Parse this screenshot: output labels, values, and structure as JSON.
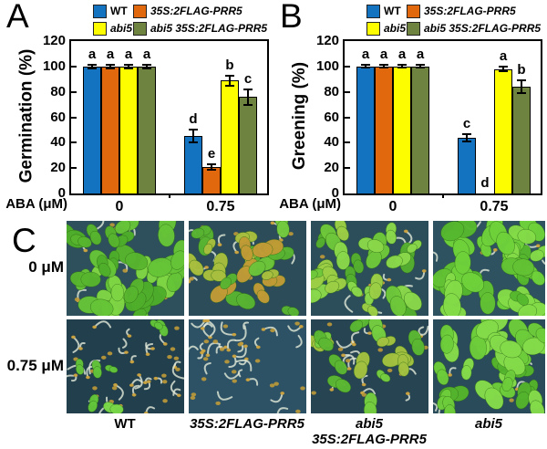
{
  "figure": {
    "panel_a_letter": "A",
    "panel_b_letter": "B",
    "panel_c_letter": "C"
  },
  "legend": {
    "items": [
      {
        "label": "WT",
        "color": "#1373c0",
        "italic": false
      },
      {
        "label": "35S:2FLAG-PRR5",
        "color": "#e2680e",
        "italic": true
      },
      {
        "label": "abi5",
        "color": "#fdfd00",
        "italic": true
      },
      {
        "label": "abi5 35S:2FLAG-PRR5",
        "color": "#6e8340",
        "italic": true
      }
    ]
  },
  "chart_data": [
    {
      "id": "A",
      "type": "bar",
      "title": "",
      "ylabel": "Germination (%)",
      "xlabel": "ABA (μM)",
      "ylim": [
        0,
        120
      ],
      "yticks": [
        0,
        20,
        40,
        60,
        80,
        100,
        120
      ],
      "categories": [
        "0",
        "0.75"
      ],
      "legend_position": "top",
      "grid": false,
      "series": [
        {
          "name": "WT",
          "color": "#1373c0",
          "values": [
            100,
            45
          ],
          "errors": [
            1.5,
            5
          ],
          "letters": [
            "a",
            "d"
          ]
        },
        {
          "name": "35S:2FLAG-PRR5",
          "color": "#e2680e",
          "values": [
            100,
            21
          ],
          "errors": [
            1.5,
            2
          ],
          "letters": [
            "a",
            "e"
          ]
        },
        {
          "name": "abi5",
          "color": "#fdfd00",
          "values": [
            100,
            89
          ],
          "errors": [
            1.5,
            4
          ],
          "letters": [
            "a",
            "b"
          ]
        },
        {
          "name": "abi5 35S:2FLAG-PRR5",
          "color": "#6e8340",
          "values": [
            100,
            76
          ],
          "errors": [
            1.5,
            6
          ],
          "letters": [
            "a",
            "c"
          ]
        }
      ]
    },
    {
      "id": "B",
      "type": "bar",
      "title": "",
      "ylabel": "Greening (%)",
      "xlabel": "ABA (μM)",
      "ylim": [
        0,
        120
      ],
      "yticks": [
        0,
        20,
        40,
        60,
        80,
        100,
        120
      ],
      "categories": [
        "0",
        "0.75"
      ],
      "legend_position": "top",
      "grid": false,
      "series": [
        {
          "name": "WT",
          "color": "#1373c0",
          "values": [
            100,
            44
          ],
          "errors": [
            1,
            3
          ],
          "letters": [
            "a",
            "c"
          ]
        },
        {
          "name": "35S:2FLAG-PRR5",
          "color": "#e2680e",
          "values": [
            100,
            0
          ],
          "errors": [
            1,
            0
          ],
          "letters": [
            "a",
            "d"
          ]
        },
        {
          "name": "abi5",
          "color": "#fdfd00",
          "values": [
            100,
            98
          ],
          "errors": [
            1,
            2
          ],
          "letters": [
            "a",
            "a"
          ]
        },
        {
          "name": "abi5 35S:2FLAG-PRR5",
          "color": "#6e8340",
          "values": [
            100,
            84
          ],
          "errors": [
            1,
            5
          ],
          "letters": [
            "a",
            "b"
          ]
        }
      ]
    }
  ],
  "panel_c": {
    "row_labels": [
      "0 μM",
      "0.75 μM"
    ],
    "col_labels": [
      {
        "lines": [
          "WT"
        ],
        "italic": false
      },
      {
        "lines": [
          "35S:2FLAG-PRR5"
        ],
        "italic": true
      },
      {
        "lines": [
          "abi5",
          "35S:2FLAG-PRR5"
        ],
        "italic": true
      },
      {
        "lines": [
          "abi5"
        ],
        "italic": true
      }
    ],
    "photos": [
      {
        "id": "wt-0um",
        "genotype": "WT",
        "treatment": "0 μM",
        "desc": "dense large green cotyledons",
        "params": {
          "bg": "#2d505c",
          "green": 30,
          "size": 12,
          "pale": 8,
          "seeds": 5,
          "palette": [
            "#4fae2a",
            "#66c437",
            "#7fd644",
            "#58b52e"
          ],
          "seed": 11
        }
      },
      {
        "id": "prr5-0um",
        "genotype": "35S:2FLAG-PRR5",
        "treatment": "0 μM",
        "desc": "green cotyledons with yellowish-brown patches",
        "params": {
          "bg": "#2b4c58",
          "green": 24,
          "size": 10,
          "pale": 12,
          "seeds": 8,
          "palette": [
            "#58b431",
            "#74cb3e",
            "#a8bf3e",
            "#c19b35",
            "#6cc43a"
          ],
          "seed": 22
        }
      },
      {
        "id": "abi5-prr5-0um",
        "genotype": "abi5 35S:2FLAG-PRR5",
        "treatment": "0 μM",
        "desc": "green cotyledons",
        "params": {
          "bg": "#2c4e5a",
          "green": 26,
          "size": 10,
          "pale": 10,
          "seeds": 7,
          "palette": [
            "#55b02e",
            "#6fc83a",
            "#8ad84a",
            "#9ccf45"
          ],
          "seed": 33
        }
      },
      {
        "id": "abi5-0um",
        "genotype": "abi5",
        "treatment": "0 μM",
        "desc": "dense bright green cotyledons",
        "params": {
          "bg": "#2e5260",
          "green": 34,
          "size": 12,
          "pale": 6,
          "seeds": 3,
          "palette": [
            "#56b82e",
            "#6fd23a",
            "#84dc48",
            "#62c233"
          ],
          "seed": 44
        }
      },
      {
        "id": "wt-075um",
        "genotype": "WT",
        "treatment": "0.75 μM",
        "desc": "mostly pale ungerminated seedlings, few small green cotyledons",
        "params": {
          "bg": "#223f4d",
          "green": 7,
          "size": 7,
          "pale": 30,
          "seeds": 16,
          "palette": [
            "#62c53a",
            "#79d747"
          ],
          "seed": 55
        }
      },
      {
        "id": "prr5-075um",
        "genotype": "35S:2FLAG-PRR5",
        "treatment": "0.75 μM",
        "desc": "pale seedlings with yellow seed coats, no greening",
        "params": {
          "bg": "#2d5265",
          "green": 0,
          "size": 0,
          "pale": 30,
          "seeds": 20,
          "palette": [],
          "seed": 66
        }
      },
      {
        "id": "abi5-prr5-075um",
        "genotype": "abi5 35S:2FLAG-PRR5",
        "treatment": "0.75 μM",
        "desc": "mixed green cotyledons and pale seedlings",
        "params": {
          "bg": "#274452",
          "green": 16,
          "size": 9,
          "pale": 16,
          "seeds": 10,
          "palette": [
            "#5cb832",
            "#76cf40",
            "#a3c240"
          ],
          "seed": 77
        }
      },
      {
        "id": "abi5-075um",
        "genotype": "abi5",
        "treatment": "0.75 μM",
        "desc": "dense green cotyledons",
        "params": {
          "bg": "#2a4c5a",
          "green": 30,
          "size": 12,
          "pale": 8,
          "seeds": 4,
          "palette": [
            "#54b42c",
            "#6ecd3a",
            "#85dc4a"
          ],
          "seed": 88
        }
      }
    ]
  }
}
